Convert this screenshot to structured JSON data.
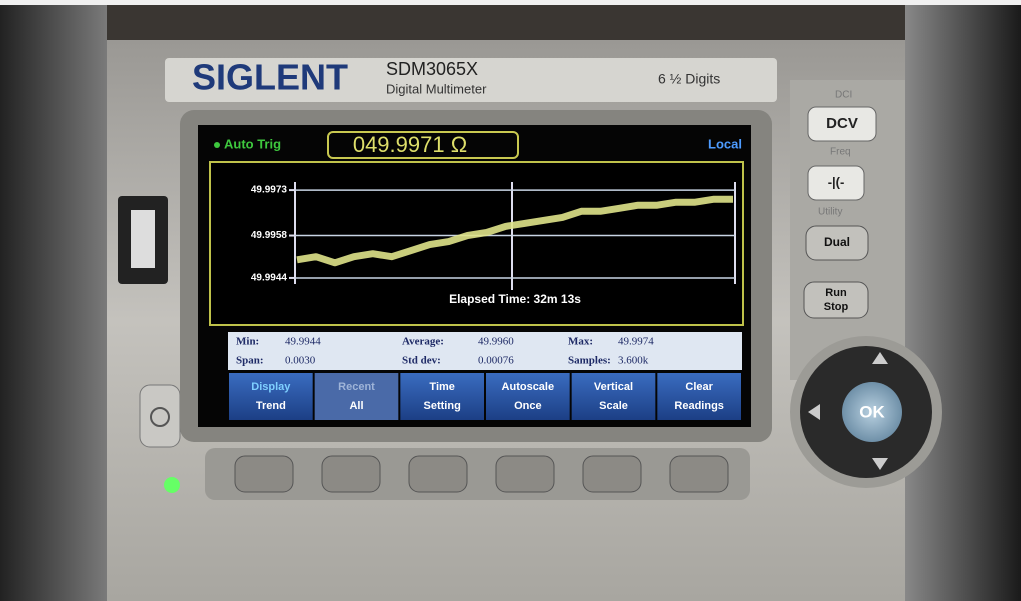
{
  "device": {
    "brand": "SIGLENT",
    "model": "SDM3065X",
    "description": "Digital Multimeter",
    "resolution": "6 ½ Digits",
    "buttons": {
      "dcv": "DCV",
      "dual": "Dual",
      "run": "Run",
      "stop": "Stop",
      "ok": "OK"
    },
    "button_labels": {
      "dci": "DCI",
      "freq": "Freq",
      "utility": "Utility"
    }
  },
  "screen": {
    "trigger": "Auto Trig",
    "reading": "049.9971 Ω",
    "mode": "Local",
    "stats": [
      [
        "Min:",
        "49.9944"
      ],
      [
        "Span:",
        "0.0030"
      ],
      [
        "Average:",
        "49.9960"
      ],
      [
        "Std dev:",
        "0.00076"
      ],
      [
        "Max:",
        "49.9974"
      ],
      [
        "Samples:",
        "3.600k"
      ]
    ],
    "softkeys": [
      [
        "Display",
        "Trend"
      ],
      [
        "Recent",
        "All"
      ],
      [
        "Time",
        "Setting"
      ],
      [
        "Autoscale",
        "Once"
      ],
      [
        "Vertical",
        "Scale"
      ],
      [
        "Clear",
        "Readings"
      ]
    ]
  },
  "chart_data": {
    "type": "line",
    "annotation": "Elapsed Time: 32m 13s",
    "color": "#dfe38a",
    "values": [
      49.995,
      49.9951,
      49.9949,
      49.9951,
      49.9952,
      49.9951,
      49.9953,
      49.9955,
      49.9956,
      49.9958,
      49.9959,
      49.9961,
      49.9962,
      49.9963,
      49.9964,
      49.9966,
      49.9966,
      49.9967,
      49.9968,
      49.9968,
      49.9969,
      49.9969,
      49.997,
      49.997
    ],
    "ylim": [
      49.9942,
      49.9976
    ],
    "yticks": [
      49.9944,
      49.9958,
      49.9973
    ],
    "grid": true
  }
}
